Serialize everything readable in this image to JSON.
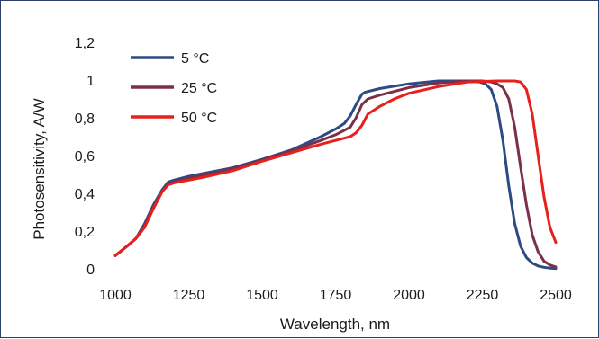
{
  "chart_data": {
    "type": "line",
    "xlabel": "Wavelength, nm",
    "ylabel": "Photosensitivity, A/W",
    "xlim": [
      1000,
      2500
    ],
    "ylim": [
      0,
      1.2
    ],
    "x_ticks": [
      "1000",
      "1250",
      "1500",
      "1750",
      "2000",
      "2250",
      "2500"
    ],
    "y_ticks": [
      "0",
      "0,2",
      "0,4",
      "0,6",
      "0,8",
      "1",
      "1,2"
    ],
    "legend": "top-left",
    "grid": false,
    "series": [
      {
        "name": "5 °C",
        "color": "#2e4a85",
        "x": [
          1000,
          1040,
          1070,
          1100,
          1130,
          1160,
          1180,
          1200,
          1250,
          1300,
          1400,
          1500,
          1600,
          1700,
          1750,
          1780,
          1800,
          1820,
          1840,
          1850,
          1900,
          2000,
          2100,
          2200,
          2240,
          2260,
          2280,
          2300,
          2320,
          2340,
          2360,
          2380,
          2400,
          2420,
          2440,
          2460,
          2480,
          2500
        ],
        "y": [
          0.07,
          0.12,
          0.16,
          0.24,
          0.34,
          0.42,
          0.46,
          0.47,
          0.49,
          0.505,
          0.535,
          0.58,
          0.63,
          0.7,
          0.74,
          0.77,
          0.81,
          0.87,
          0.925,
          0.935,
          0.955,
          0.98,
          0.995,
          0.995,
          0.99,
          0.98,
          0.95,
          0.86,
          0.68,
          0.44,
          0.24,
          0.12,
          0.06,
          0.03,
          0.015,
          0.008,
          0.004,
          0.002
        ]
      },
      {
        "name": "25 °C",
        "color": "#7b3049",
        "x": [
          1000,
          1040,
          1070,
          1100,
          1130,
          1160,
          1180,
          1200,
          1250,
          1300,
          1400,
          1500,
          1600,
          1700,
          1750,
          1800,
          1820,
          1840,
          1860,
          1900,
          2000,
          2100,
          2200,
          2250,
          2280,
          2300,
          2320,
          2340,
          2360,
          2380,
          2400,
          2420,
          2440,
          2460,
          2480,
          2500
        ],
        "y": [
          0.07,
          0.12,
          0.16,
          0.23,
          0.33,
          0.41,
          0.45,
          0.46,
          0.48,
          0.495,
          0.53,
          0.575,
          0.625,
          0.68,
          0.71,
          0.75,
          0.8,
          0.87,
          0.9,
          0.92,
          0.96,
          0.985,
          0.995,
          0.995,
          0.99,
          0.98,
          0.96,
          0.9,
          0.75,
          0.54,
          0.34,
          0.18,
          0.09,
          0.04,
          0.02,
          0.01
        ]
      },
      {
        "name": "50 °C",
        "color": "#e8201c",
        "x": [
          1000,
          1040,
          1070,
          1100,
          1130,
          1160,
          1180,
          1200,
          1250,
          1300,
          1400,
          1500,
          1600,
          1700,
          1750,
          1800,
          1820,
          1840,
          1860,
          1880,
          1900,
          1950,
          2000,
          2100,
          2200,
          2300,
          2340,
          2360,
          2380,
          2400,
          2420,
          2440,
          2460,
          2480,
          2500
        ],
        "y": [
          0.07,
          0.12,
          0.16,
          0.22,
          0.32,
          0.41,
          0.445,
          0.455,
          0.47,
          0.485,
          0.52,
          0.57,
          0.615,
          0.66,
          0.68,
          0.7,
          0.72,
          0.76,
          0.82,
          0.84,
          0.86,
          0.9,
          0.93,
          0.965,
          0.99,
          0.995,
          0.995,
          0.995,
          0.99,
          0.95,
          0.82,
          0.6,
          0.38,
          0.22,
          0.14
        ]
      }
    ]
  }
}
